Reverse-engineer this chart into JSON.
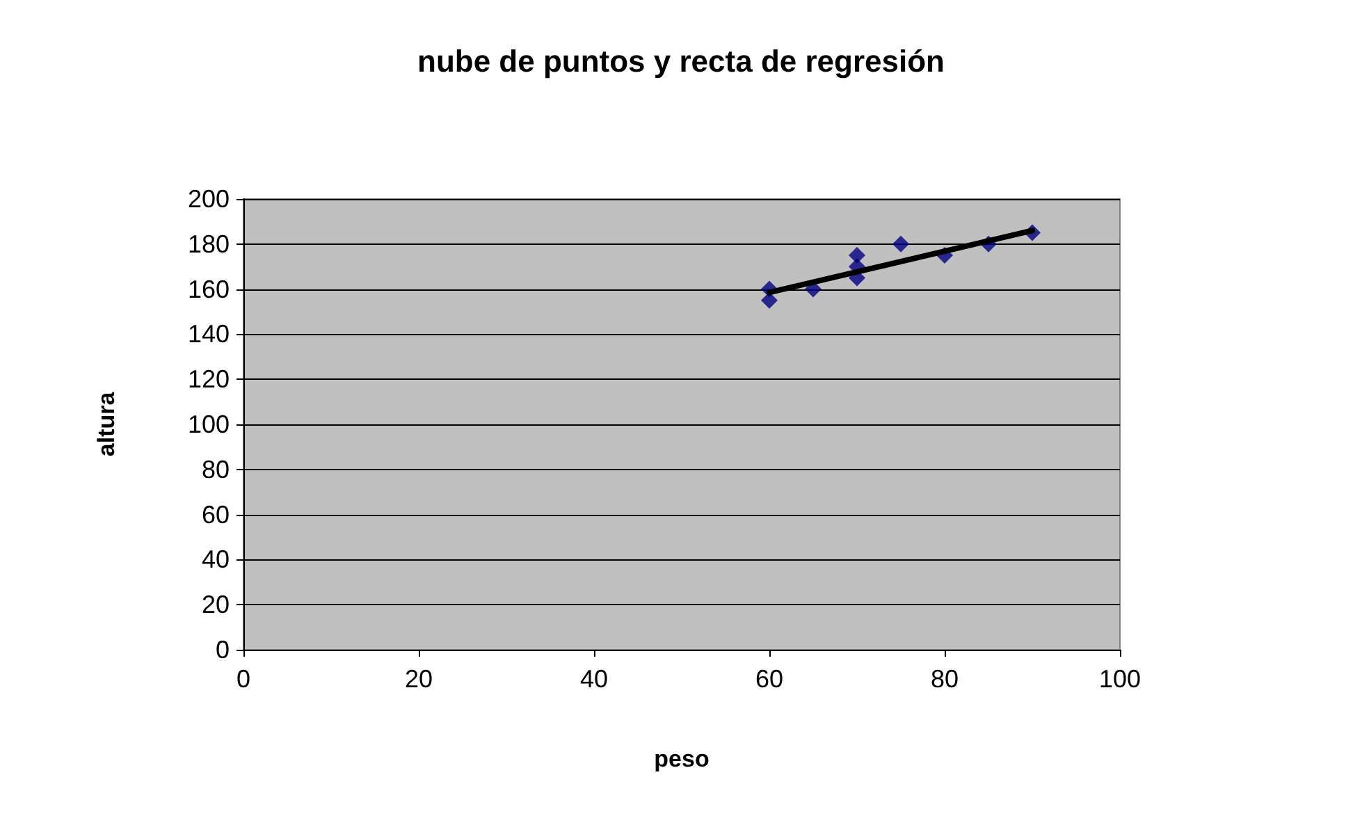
{
  "chart_data": {
    "type": "scatter",
    "title": "nube de puntos y recta de regresión",
    "xlabel": "peso",
    "ylabel": "altura",
    "marker": "diamond",
    "grid": "y",
    "xlim": [
      0,
      100
    ],
    "xticks": [
      0,
      20,
      40,
      60,
      80,
      100
    ],
    "ylim": [
      0,
      200
    ],
    "yticks": [
      0,
      20,
      40,
      60,
      80,
      100,
      120,
      140,
      160,
      180,
      200
    ],
    "series": [
      {
        "color": "#000080",
        "x": [
          60,
          60,
          65,
          70,
          70,
          70,
          75,
          80,
          85,
          90
        ],
        "values": [
          160,
          155,
          160,
          175,
          170,
          165,
          180,
          175,
          180,
          185
        ]
      },
      {
        "type": "line",
        "marker": "none",
        "color": "#000000",
        "x": [
          60,
          90
        ],
        "values": [
          158.5,
          186
        ]
      }
    ]
  }
}
